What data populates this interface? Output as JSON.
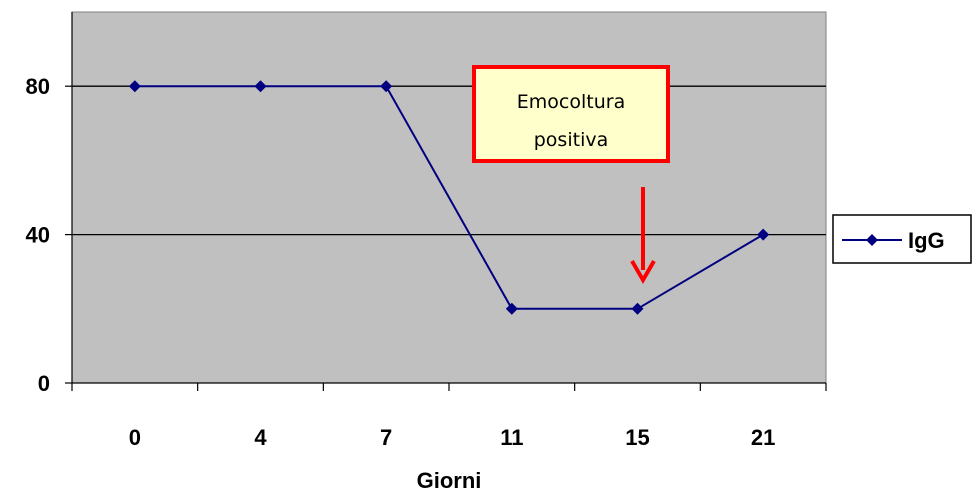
{
  "chart_data": {
    "type": "line",
    "categories": [
      "0",
      "4",
      "7",
      "11",
      "15",
      "21"
    ],
    "series": [
      {
        "name": "IgG",
        "values": [
          80,
          80,
          80,
          20,
          20,
          40
        ],
        "color": "#000080"
      }
    ],
    "xlabel": "Giorni",
    "ylabel": "",
    "yticks": [
      "0",
      "40",
      "80"
    ],
    "ylim": [
      0,
      100
    ],
    "grid": "horizontal",
    "plot_background": "#c0c0c0",
    "legend": {
      "position": "right",
      "label": "IgG"
    },
    "annotation": {
      "text_lines": [
        "Emocoltura",
        "positiva"
      ],
      "border_color": "#ff0000",
      "fill_color": "#ffffcc",
      "arrow_color": "#ff0000",
      "points_to_category": "15"
    }
  }
}
